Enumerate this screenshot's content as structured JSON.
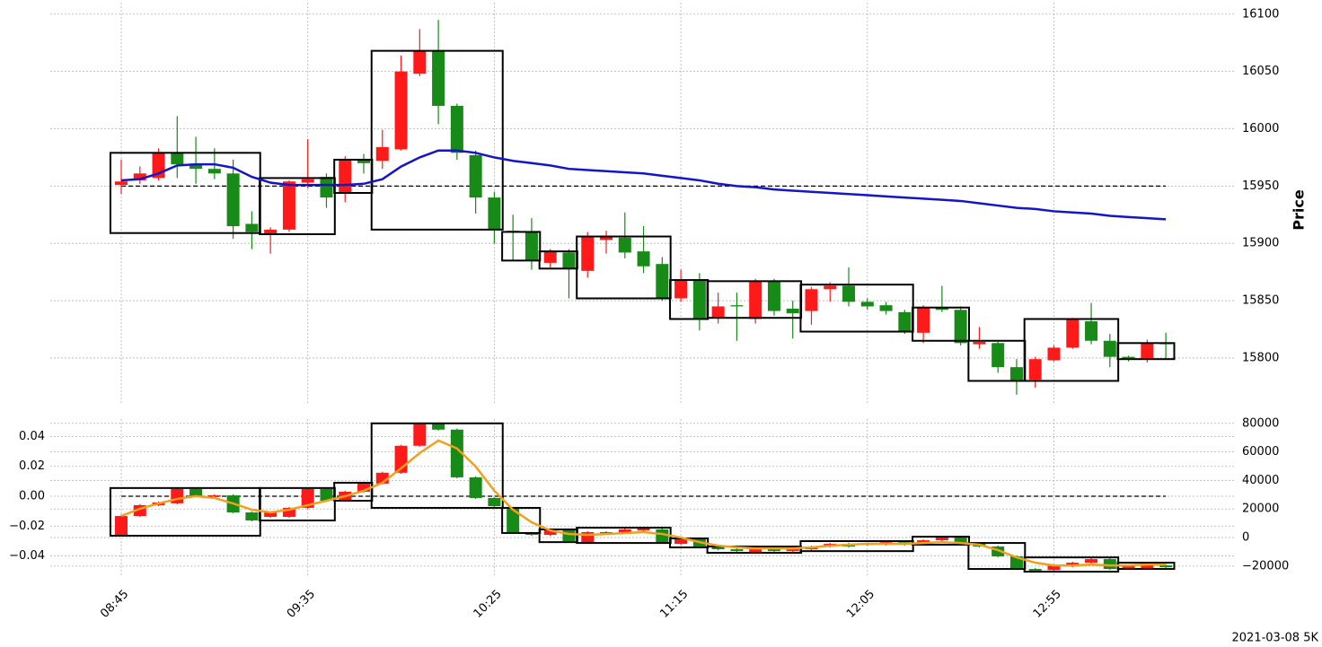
{
  "chart_data": [
    {
      "type": "candlestick",
      "ylabel": "Price",
      "up_color": "#ff1a1a",
      "down_color": "#178a17",
      "box_color": "#000000",
      "ylim": [
        15760,
        16110
      ],
      "yticks": [
        15800,
        15850,
        15900,
        15950,
        16000,
        16050,
        16100
      ],
      "grid": true,
      "hline": 15950,
      "open": [
        15951,
        15955,
        15957,
        15979,
        15969,
        15965,
        15961,
        15917,
        15908,
        15912,
        15953,
        15958,
        15944,
        15973,
        15972,
        15982,
        16048,
        16068,
        16020,
        15977,
        15940,
        15911,
        15910,
        15883,
        15892,
        15876,
        15903,
        15905,
        15893,
        15882,
        15852,
        15868,
        15835,
        15846,
        15834,
        15867,
        15843,
        15841,
        15860,
        15863,
        15849,
        15846,
        15840,
        15822,
        15844,
        15842,
        15812,
        15813,
        15792,
        15781,
        15798,
        15809,
        15832,
        15815,
        15801,
        15799,
        15813
      ],
      "high": [
        15973,
        15967,
        15983,
        16011,
        15993,
        15983,
        15973,
        15928,
        15914,
        15955,
        15991,
        15961,
        15976,
        15978,
        15999,
        16064,
        16087,
        16095,
        16022,
        15981,
        15945,
        15925,
        15922,
        15895,
        15895,
        15910,
        15911,
        15927,
        15915,
        15888,
        15877,
        15874,
        15857,
        15857,
        15869,
        15869,
        15850,
        15862,
        15866,
        15879,
        15852,
        15849,
        15842,
        15846,
        15863,
        15845,
        15827,
        15814,
        15799,
        15801,
        15811,
        15835,
        15848,
        15821,
        15802,
        15816,
        15822
      ],
      "low": [
        15943,
        15952,
        15955,
        15957,
        15952,
        15956,
        15904,
        15895,
        15891,
        15910,
        15948,
        15931,
        15936,
        15961,
        15965,
        15981,
        16046,
        16004,
        15973,
        15926,
        15900,
        15885,
        15877,
        15879,
        15852,
        15870,
        15891,
        15887,
        15874,
        15850,
        15849,
        15824,
        15830,
        15815,
        15830,
        15837,
        15817,
        15829,
        15849,
        15845,
        15842,
        15838,
        15821,
        15813,
        15840,
        15811,
        15808,
        15787,
        15768,
        15774,
        15797,
        15808,
        15812,
        15792,
        15797,
        15796,
        15799
      ],
      "close": [
        15954,
        15961,
        15979,
        15969,
        15965,
        15961,
        15915,
        15910,
        15912,
        15954,
        15956,
        15940,
        15973,
        15970,
        15984,
        16050,
        16068,
        16020,
        15979,
        15940,
        15912,
        15910,
        15885,
        15893,
        15878,
        15906,
        15906,
        15892,
        15880,
        15852,
        15868,
        15834,
        15845,
        15845,
        15867,
        15841,
        15839,
        15860,
        15863,
        15849,
        15845,
        15841,
        15823,
        15844,
        15842,
        15813,
        15814,
        15792,
        15780,
        15799,
        15809,
        15834,
        15815,
        15801,
        15799,
        15813,
        15812
      ],
      "line": {
        "color": "#1414c8",
        "values": [
          15955,
          15956,
          15961,
          15968,
          15969,
          15969,
          15966,
          15958,
          15953,
          15951,
          15951,
          15951,
          15951,
          15952,
          15956,
          15967,
          15975,
          15981,
          15981,
          15979,
          15975,
          15972,
          15970,
          15968,
          15965,
          15964,
          15963,
          15962,
          15961,
          15959,
          15957,
          15955,
          15952,
          15950,
          15949,
          15947,
          15946,
          15945,
          15944,
          15943,
          15942,
          15941,
          15940,
          15939,
          15938,
          15937,
          15935,
          15933,
          15931,
          15930,
          15928,
          15927,
          15926,
          15924,
          15923,
          15922,
          15921
        ]
      },
      "boxes": [
        {
          "start": 0,
          "end": 7,
          "high": 15979,
          "low": 15909
        },
        {
          "start": 8,
          "end": 11,
          "high": 15957,
          "low": 15908
        },
        {
          "start": 12,
          "end": 13,
          "high": 15973,
          "low": 15944
        },
        {
          "start": 14,
          "end": 20,
          "high": 16068,
          "low": 15912
        },
        {
          "start": 21,
          "end": 22,
          "high": 15910,
          "low": 15885
        },
        {
          "start": 23,
          "end": 24,
          "high": 15893,
          "low": 15878
        },
        {
          "start": 25,
          "end": 29,
          "high": 15906,
          "low": 15852
        },
        {
          "start": 30,
          "end": 31,
          "high": 15868,
          "low": 15834
        },
        {
          "start": 32,
          "end": 36,
          "high": 15867,
          "low": 15835
        },
        {
          "start": 37,
          "end": 42,
          "high": 15864,
          "low": 15823
        },
        {
          "start": 43,
          "end": 45,
          "high": 15844,
          "low": 15815
        },
        {
          "start": 46,
          "end": 48,
          "high": 15815,
          "low": 15780
        },
        {
          "start": 49,
          "end": 53,
          "high": 15834,
          "low": 15780
        },
        {
          "start": 54,
          "end": 56,
          "high": 15813,
          "low": 15799
        }
      ]
    },
    {
      "type": "candlestick",
      "axis": "y2",
      "up_color": "#ff1a1a",
      "down_color": "#178a17",
      "box_color": "#000000",
      "categories": [
        "08:45",
        null,
        null,
        null,
        null,
        null,
        null,
        null,
        null,
        null,
        "09:35",
        null,
        null,
        null,
        null,
        null,
        null,
        null,
        null,
        null,
        "10:25",
        null,
        null,
        null,
        null,
        null,
        null,
        null,
        null,
        null,
        "11:15",
        null,
        null,
        null,
        null,
        null,
        null,
        null,
        null,
        null,
        "12:05",
        null,
        null,
        null,
        null,
        null,
        null,
        null,
        null,
        null,
        "12:55",
        null,
        null,
        null,
        null,
        null,
        null
      ],
      "ylim": [
        -0.0535,
        0.0517
      ],
      "yticks": [
        {
          "value": -0.04,
          "label": "−0.04"
        },
        {
          "value": -0.02,
          "label": "−0.02"
        },
        {
          "value": 0,
          "label": "0.00"
        },
        0.02,
        0.04
      ],
      "y2lim": [
        -27000,
        83000
      ],
      "y2ticks": [
        {
          "value": -20000,
          "label": "−20000"
        },
        0,
        20000,
        40000,
        60000,
        80000
      ],
      "grid": true,
      "hline": 0,
      "open": [
        1300,
        15100,
        22700,
        24000,
        34000,
        29600,
        29600,
        17600,
        14500,
        14500,
        20800,
        34000,
        25800,
        32100,
        37800,
        45400,
        64300,
        80000,
        75600,
        42200,
        27700,
        20800,
        3200,
        1900,
        5700,
        -3200,
        3800,
        3800,
        5000,
        5700,
        -4400,
        -600,
        -6900,
        -8200,
        -10100,
        -8200,
        -9500,
        -8200,
        -6300,
        -4400,
        -4400,
        -5000,
        -3200,
        -4400,
        -1900,
        0,
        -4400,
        -6300,
        -13200,
        -22000,
        -22700,
        -20200,
        -17600,
        -15100,
        -21400,
        -21400,
        -19500
      ],
      "high": [
        16000,
        23400,
        25300,
        34700,
        34700,
        30300,
        30300,
        18300,
        18300,
        21500,
        34700,
        34700,
        32800,
        39100,
        46100,
        65000,
        80700,
        80700,
        76300,
        42900,
        28400,
        21500,
        3900,
        6400,
        6400,
        4500,
        4500,
        6400,
        7000,
        6400,
        100,
        100,
        -6200,
        -7500,
        -7500,
        -7500,
        -7500,
        -5600,
        -3700,
        -3700,
        -3700,
        -2500,
        -2500,
        -1200,
        700,
        700,
        -3700,
        -5600,
        -12500,
        -21300,
        -18800,
        -16900,
        -14400,
        -14400,
        -18800,
        -17600,
        -18800
      ],
      "low": [
        600,
        14400,
        22000,
        23300,
        28300,
        28900,
        16900,
        11300,
        13800,
        13800,
        20100,
        25100,
        25100,
        31400,
        37100,
        44700,
        63600,
        74900,
        41500,
        27000,
        21300,
        2500,
        1200,
        1200,
        -3200,
        -3900,
        3000,
        3100,
        4300,
        -3900,
        -5100,
        -7600,
        -8900,
        -10200,
        -10800,
        -10200,
        -10200,
        -8900,
        -7000,
        -7000,
        -5700,
        -5700,
        -5700,
        -5100,
        -2600,
        -5100,
        -7000,
        -13900,
        -22700,
        -24000,
        -23400,
        -20900,
        -18300,
        -22700,
        -22100,
        -22100,
        -21500
      ],
      "close": [
        15100,
        22700,
        24600,
        34000,
        29000,
        29600,
        17600,
        12000,
        17600,
        20800,
        34000,
        25800,
        32100,
        38400,
        45400,
        64300,
        80000,
        75600,
        42200,
        27700,
        22000,
        3200,
        1900,
        5700,
        -2500,
        3800,
        3700,
        5700,
        6300,
        -3200,
        -600,
        -6900,
        -8200,
        -9500,
        -8200,
        -9500,
        -8200,
        -6300,
        -4400,
        -6300,
        -5000,
        -3200,
        -5000,
        -1900,
        0,
        -4400,
        -6300,
        -13200,
        -22000,
        -23300,
        -19500,
        -17600,
        -15100,
        -22000,
        -19500,
        -18300,
        -20800
      ],
      "line": {
        "color": "#f0a01e",
        "values": [
          15100,
          20200,
          23900,
          27100,
          29000,
          27700,
          23900,
          19500,
          17600,
          19500,
          22700,
          25800,
          29000,
          32800,
          38400,
          48500,
          59200,
          68000,
          62400,
          49800,
          32800,
          19500,
          10700,
          5000,
          2500,
          1900,
          2500,
          3200,
          3800,
          2500,
          0,
          -3200,
          -5700,
          -6900,
          -7600,
          -7600,
          -7600,
          -6900,
          -5700,
          -5000,
          -4400,
          -4400,
          -4400,
          -3800,
          -3200,
          -3800,
          -5000,
          -8800,
          -13900,
          -17600,
          -19500,
          -19500,
          -18900,
          -19500,
          -19500,
          -18900,
          -18900
        ]
      },
      "boxes": [
        {
          "start": 0,
          "end": 7,
          "high": 34700,
          "low": 1300
        },
        {
          "start": 8,
          "end": 11,
          "high": 34700,
          "low": 12000
        },
        {
          "start": 12,
          "end": 13,
          "high": 38400,
          "low": 25800
        },
        {
          "start": 14,
          "end": 20,
          "high": 80000,
          "low": 20800
        },
        {
          "start": 21,
          "end": 22,
          "high": 20800,
          "low": 3200
        },
        {
          "start": 23,
          "end": 24,
          "high": 5700,
          "low": -3200
        },
        {
          "start": 25,
          "end": 29,
          "high": 6900,
          "low": -3800
        },
        {
          "start": 30,
          "end": 31,
          "high": -600,
          "low": -6900
        },
        {
          "start": 32,
          "end": 36,
          "high": -6300,
          "low": -10700
        },
        {
          "start": 37,
          "end": 42,
          "high": -2500,
          "low": -9500
        },
        {
          "start": 43,
          "end": 45,
          "high": 600,
          "low": -5000
        },
        {
          "start": 46,
          "end": 48,
          "high": -3800,
          "low": -22000
        },
        {
          "start": 49,
          "end": 53,
          "high": -13900,
          "low": -23900
        },
        {
          "start": 54,
          "end": 56,
          "high": -17600,
          "low": -22000
        }
      ]
    }
  ],
  "footer": "2021-03-08 5K"
}
